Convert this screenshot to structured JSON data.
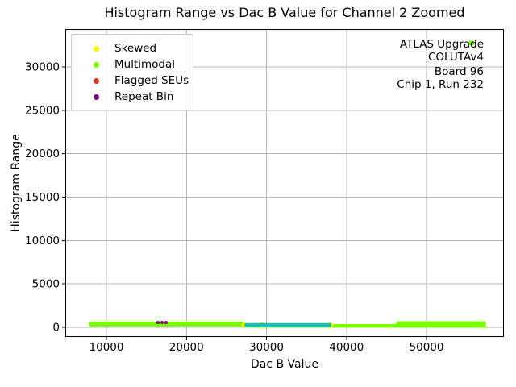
{
  "chart_data": {
    "type": "scatter",
    "title": "Histogram Range vs Dac B Value for Channel 2 Zoomed",
    "xlabel": "Dac B Value",
    "ylabel": "Histogram Range",
    "xlim": [
      4860,
      59670
    ],
    "ylim": [
      -1115,
      34370
    ],
    "xticks": [
      10000,
      20000,
      30000,
      40000,
      50000
    ],
    "yticks": [
      0,
      5000,
      10000,
      15000,
      20000,
      25000,
      30000
    ],
    "grid": true,
    "colors": {
      "multimodal": "#7cfc00",
      "skewed": "#f8f800",
      "flagged_seus": "#d9342b",
      "repeat_bin": "#800080",
      "unlabeled_line": "#1cbeb2",
      "grid": "#b8b8b8",
      "spine": "#000000",
      "text": "#000000"
    },
    "legend": {
      "position": "upper left",
      "entries": [
        {
          "label": "Skewed",
          "color_key": "skewed"
        },
        {
          "label": "Multimodal",
          "color_key": "multimodal"
        },
        {
          "label": "Flagged SEUs",
          "color_key": "flagged_seus"
        },
        {
          "label": "Repeat Bin",
          "color_key": "repeat_bin"
        }
      ]
    },
    "annotation_lines": [
      "ATLAS Upgrade",
      "COLUTAv4",
      "Board 96",
      "Chip 1, Run 232"
    ],
    "series": [
      {
        "name": "Multimodal",
        "type": "scatter-band",
        "color_key": "multimodal",
        "segments": [
          {
            "x": [
              7800,
              27400
            ],
            "y": 370,
            "thickness_px": 6
          },
          {
            "x": [
              27400,
              57600
            ],
            "y": 50,
            "thickness_px": 2
          },
          {
            "x": [
              38100,
              46500
            ],
            "y": 190,
            "thickness_px": 4
          },
          {
            "x": [
              46200,
              57450
            ],
            "y": 420,
            "thickness_px": 6
          }
        ],
        "outliers": [
          {
            "x": 55600,
            "y": 32767
          }
        ]
      },
      {
        "name": "Repeat Bin",
        "type": "scatter",
        "color_key": "repeat_bin",
        "marker_px": 2,
        "points": [
          {
            "x": 16450,
            "y": 560
          },
          {
            "x": 16950,
            "y": 560
          },
          {
            "x": 17460,
            "y": 560
          }
        ]
      },
      {
        "name": "Skewed",
        "type": "scatter",
        "color_key": "skewed",
        "marker_px": 3.5,
        "points": [
          {
            "x": 27250,
            "y": 260
          },
          {
            "x": 29450,
            "y": 260
          },
          {
            "x": 38010,
            "y": 260
          }
        ]
      },
      {
        "name": "Flagged SEUs",
        "type": "scatter",
        "color_key": "flagged_seus",
        "marker_px": 3,
        "points": []
      },
      {
        "name": "unlabeled-line",
        "type": "line",
        "color_key": "unlabeled_line",
        "x": [
          27250,
          38110
        ],
        "y": 260,
        "thickness_px": 5
      }
    ]
  }
}
